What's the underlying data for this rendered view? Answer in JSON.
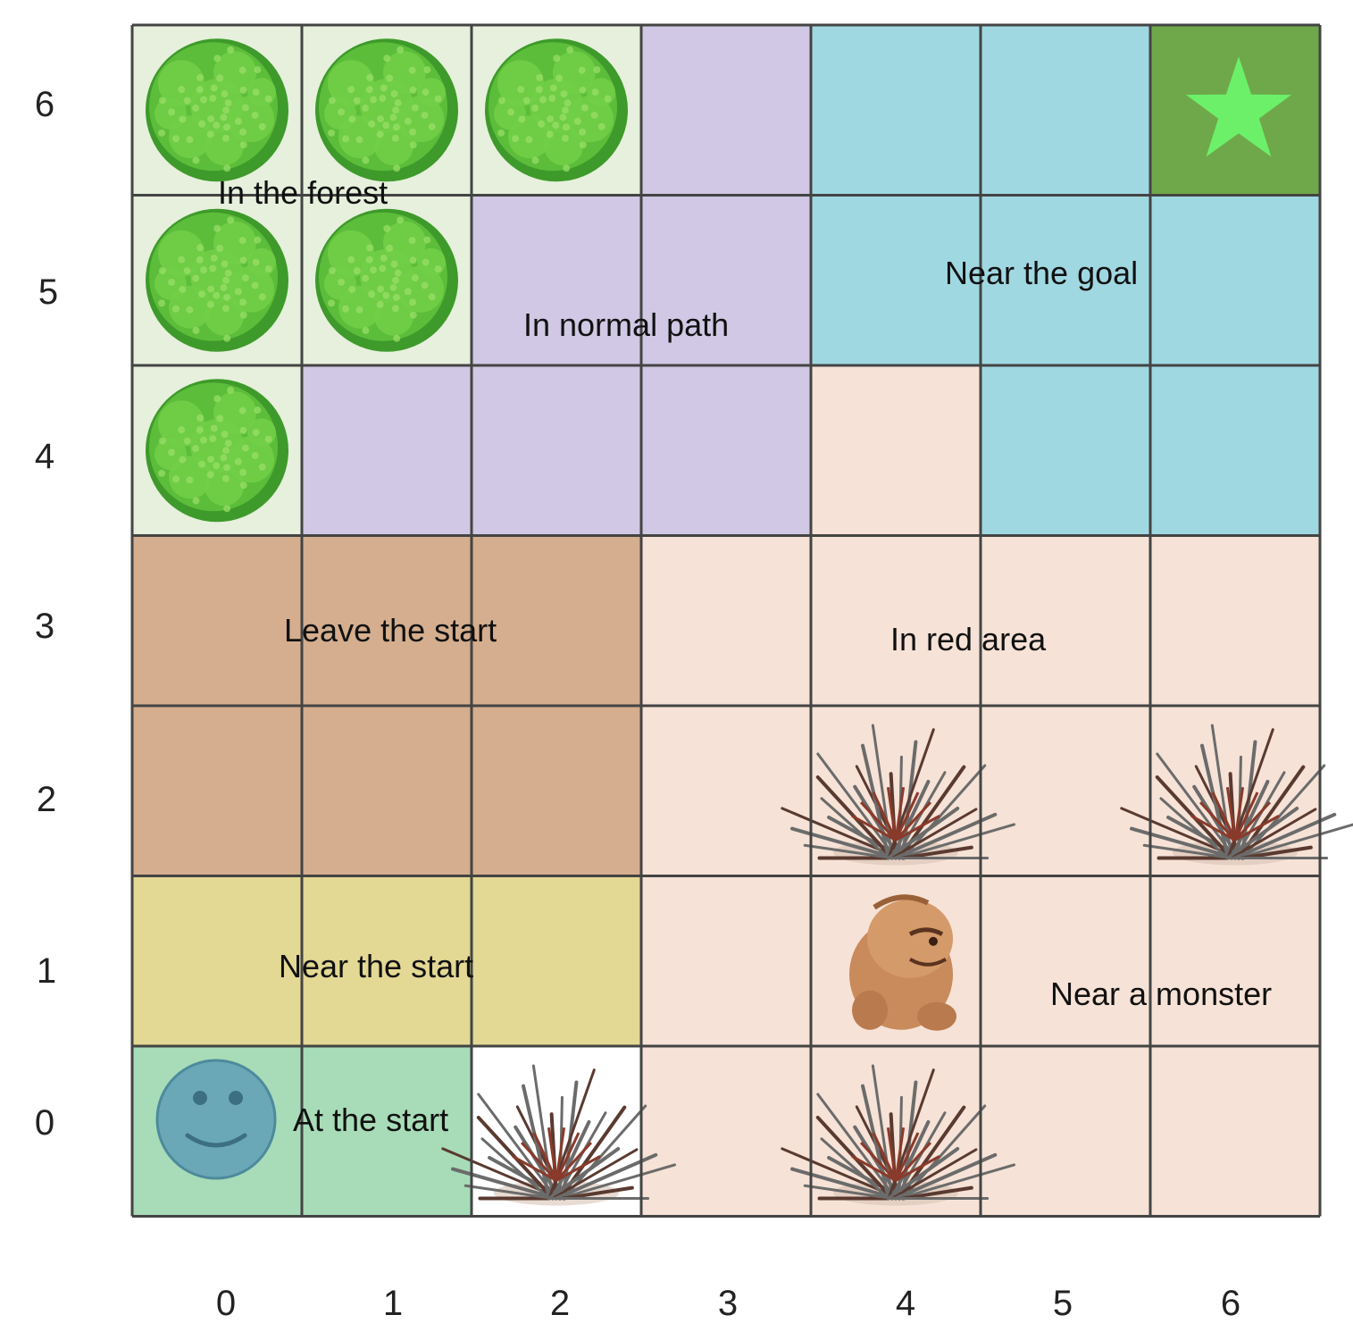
{
  "grid": {
    "cols": 7,
    "rows": 7,
    "x_labels": [
      "0",
      "1",
      "2",
      "3",
      "4",
      "5",
      "6"
    ],
    "y_labels": [
      "0",
      "1",
      "2",
      "3",
      "4",
      "5",
      "6"
    ]
  },
  "colors": {
    "forest": "#e6f0dc",
    "normal_path": "#d0c8e4",
    "near_goal": "#a0d8e2",
    "goal_cell": "#6fa84a",
    "goal_star": "#6cf06a",
    "red_area": "#f6e2d6",
    "leave_start": "#d4ae8e",
    "near_start": "#e3d894",
    "at_start": "#a8dcb8",
    "agent_face": "#6aa8b8",
    "grid_line": "#444444"
  },
  "regions": [
    {
      "id": "forest",
      "label": "In the forest",
      "color_key": "forest",
      "cells": [
        [
          0,
          6
        ],
        [
          1,
          6
        ],
        [
          2,
          6
        ],
        [
          0,
          5
        ],
        [
          1,
          5
        ],
        [
          0,
          4
        ]
      ]
    },
    {
      "id": "normal-path",
      "label": "In normal path",
      "color_key": "normal_path",
      "cells": [
        [
          3,
          6
        ],
        [
          2,
          5
        ],
        [
          3,
          5
        ],
        [
          1,
          4
        ],
        [
          2,
          4
        ],
        [
          3,
          4
        ]
      ]
    },
    {
      "id": "near-goal",
      "label": "Near the goal",
      "color_key": "near_goal",
      "cells": [
        [
          4,
          6
        ],
        [
          5,
          6
        ],
        [
          4,
          5
        ],
        [
          5,
          5
        ],
        [
          6,
          5
        ],
        [
          5,
          4
        ],
        [
          6,
          4
        ]
      ]
    },
    {
      "id": "goal",
      "label": "",
      "color_key": "goal_cell",
      "cells": [
        [
          6,
          6
        ]
      ]
    },
    {
      "id": "red-area",
      "label": "In red area",
      "color_key": "red_area",
      "cells": [
        [
          4,
          4
        ],
        [
          3,
          3
        ],
        [
          4,
          3
        ],
        [
          5,
          3
        ],
        [
          6,
          3
        ],
        [
          3,
          2
        ],
        [
          4,
          2
        ],
        [
          5,
          2
        ],
        [
          6,
          2
        ],
        [
          3,
          1
        ],
        [
          3,
          0
        ],
        [
          4,
          0
        ],
        [
          5,
          0
        ],
        [
          6,
          0
        ]
      ]
    },
    {
      "id": "near-monster",
      "label": "Near a monster",
      "color_key": "red_area",
      "cells": [
        [
          4,
          1
        ],
        [
          5,
          1
        ],
        [
          6,
          1
        ]
      ]
    },
    {
      "id": "leave-start",
      "label": "Leave the start",
      "color_key": "leave_start",
      "cells": [
        [
          0,
          3
        ],
        [
          1,
          3
        ],
        [
          2,
          3
        ],
        [
          0,
          2
        ],
        [
          1,
          2
        ],
        [
          2,
          2
        ]
      ]
    },
    {
      "id": "near-start",
      "label": "Near the start",
      "color_key": "near_start",
      "cells": [
        [
          0,
          1
        ],
        [
          1,
          1
        ],
        [
          2,
          1
        ]
      ]
    },
    {
      "id": "at-start",
      "label": "At the start",
      "color_key": "at_start",
      "cells": [
        [
          0,
          0
        ],
        [
          1,
          0
        ]
      ]
    }
  ],
  "labels": {
    "forest": "In the forest",
    "normal_path": "In normal path",
    "near_goal": "Near the goal",
    "red_area": "In red area",
    "leave_start": "Leave the start",
    "near_start": "Near the start",
    "at_start": "At the start",
    "near_monster": "Near a monster"
  },
  "objects": {
    "trees": [
      [
        0,
        6
      ],
      [
        1,
        6
      ],
      [
        2,
        6
      ],
      [
        0,
        5
      ],
      [
        1,
        5
      ],
      [
        0,
        4
      ]
    ],
    "bushes": [
      [
        4,
        2
      ],
      [
        6,
        2
      ],
      [
        2,
        0
      ],
      [
        4,
        0
      ]
    ],
    "monster": [
      4,
      1
    ],
    "agent": [
      0,
      0
    ],
    "goal_star": [
      6,
      6
    ]
  },
  "icons": {
    "tree": "tree-icon",
    "bush": "thorn-bush-icon",
    "monster": "monster-icon",
    "agent": "smiley-agent-icon",
    "goal": "star-goal-icon"
  }
}
